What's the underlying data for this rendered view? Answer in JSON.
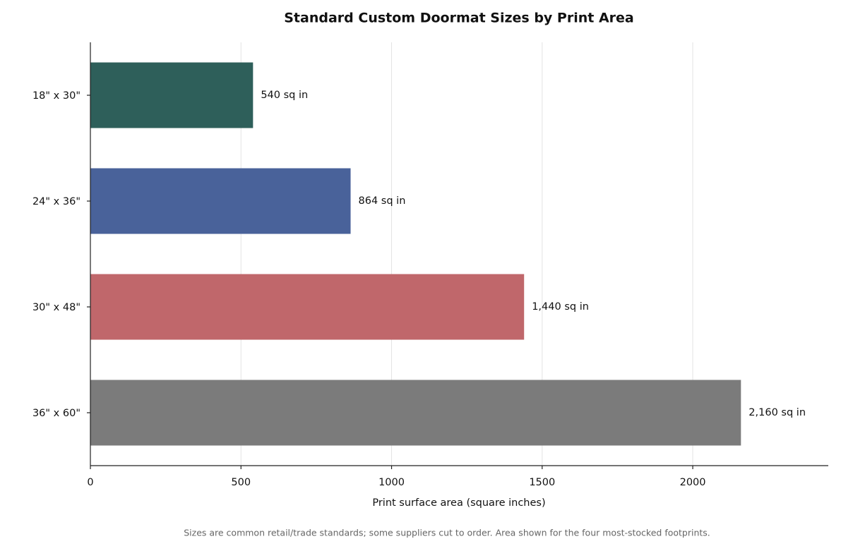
{
  "chart_data": {
    "type": "bar",
    "orientation": "horizontal",
    "title": "Standard Custom Doormat Sizes by Print Area",
    "xlabel": "Print surface area (square inches)",
    "footnote": "Sizes are common retail/trade standards; some suppliers cut to order. Area shown for the four most-stocked footprints.",
    "categories": [
      "18\" x 30\"",
      "24\" x 36\"",
      "30\" x 48\"",
      "36\" x 60\""
    ],
    "values": [
      540,
      864,
      1440,
      2160
    ],
    "value_labels": [
      "540 sq in",
      "864 sq in",
      "1,440 sq in",
      "2,160 sq in"
    ],
    "colors": [
      "#2e5f5a",
      "#49629a",
      "#c0676b",
      "#7b7b7b"
    ],
    "xlim": [
      0,
      2450
    ],
    "xticks": [
      0,
      500,
      1000,
      1500,
      2000
    ],
    "grid": true
  }
}
